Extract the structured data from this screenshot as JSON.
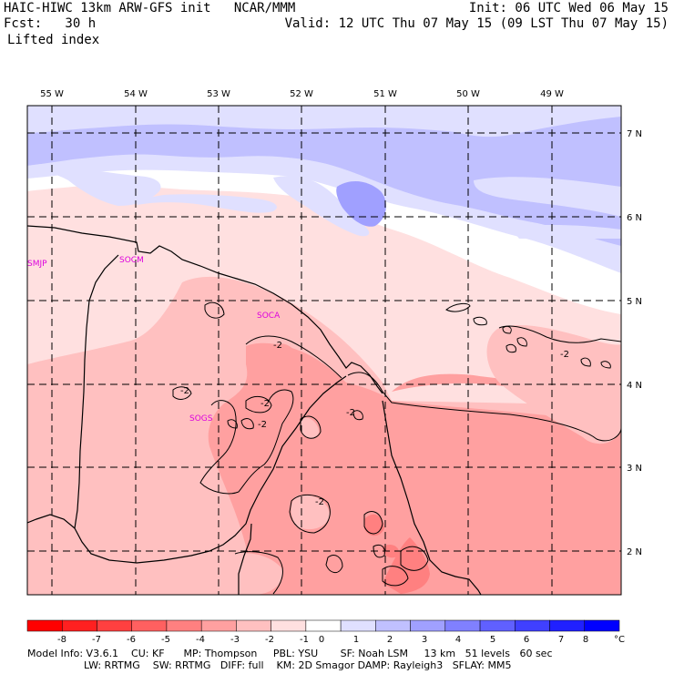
{
  "header": {
    "left_line1": "HAIC-HIWC 13km ARW-GFS init   NCAR/MMM",
    "left_line2": "Fcst:   30 h",
    "field_name": "Lifted index",
    "right_line1": "Init: 06 UTC Wed 06 May 15",
    "right_line2": "Valid: 12 UTC Thu 07 May 15 (09 LST Thu 07 May 15)"
  },
  "map": {
    "lon_labels": [
      "55 W",
      "54 W",
      "53 W",
      "52 W",
      "51 W",
      "50 W",
      "49 W"
    ],
    "lat_labels": [
      "7 N",
      "6 N",
      "5 N",
      "4 N",
      "3 N",
      "2 N"
    ],
    "stations": [
      "SMJP",
      "SOCM",
      "SOCA",
      "SOGS"
    ],
    "contour_labels": [
      "-2",
      "-2",
      "-2",
      "-2",
      "-2",
      "-2",
      "-2"
    ]
  },
  "colorbar": {
    "labels": [
      "-8",
      "-7",
      "-6",
      "-5",
      "-4",
      "-3",
      "-2",
      "-1",
      "0",
      "1",
      "2",
      "3",
      "4",
      "5",
      "6",
      "7",
      "8"
    ],
    "unit": "°C",
    "colors": [
      "#ff0000",
      "#ff2020",
      "#ff4040",
      "#ff6060",
      "#ff8080",
      "#ffa0a0",
      "#ffc0c0",
      "#ffe0e0",
      "#ffffff",
      "#e0e0ff",
      "#c0c0ff",
      "#a0a0ff",
      "#8080ff",
      "#6060ff",
      "#4040ff",
      "#2020ff",
      "#0000ff"
    ]
  },
  "footer": {
    "line1": "Model Info: V3.6.1    CU: KF      MP: Thompson     PBL: YSU       SF: Noah LSM     13 km   51 levels   60 sec",
    "line2": "LW: RRTMG    SW: RRTMG   DIFF: full    KM: 2D Smagor DAMP: Rayleigh3   SFLAY: MM5"
  }
}
